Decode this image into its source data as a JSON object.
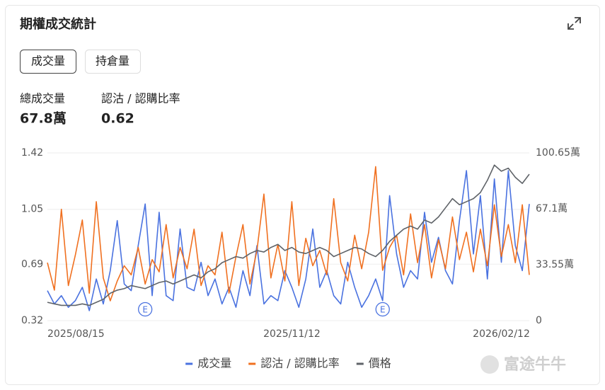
{
  "header": {
    "title": "期權成交統計"
  },
  "tabs": [
    "成交量",
    "持倉量"
  ],
  "summary": [
    {
      "label": "總成交量",
      "value": "67.8萬"
    },
    {
      "label": "認沽 / 認購比率",
      "value": "0.62"
    }
  ],
  "watermark": "富途牛牛",
  "chart_data": {
    "type": "line",
    "categories": [
      "2025/08/15",
      null,
      null,
      null,
      null,
      null,
      null,
      null,
      null,
      null,
      null,
      null,
      null,
      null,
      null,
      null,
      null,
      null,
      null,
      null,
      null,
      null,
      null,
      null,
      null,
      null,
      null,
      null,
      null,
      null,
      null,
      null,
      null,
      null,
      null,
      "2025/11/12",
      null,
      null,
      null,
      null,
      null,
      null,
      null,
      null,
      null,
      null,
      null,
      null,
      null,
      null,
      null,
      null,
      null,
      null,
      null,
      null,
      null,
      null,
      null,
      null,
      null,
      null,
      null,
      null,
      null,
      "2026/02/12",
      null,
      null,
      null,
      null
    ],
    "series": [
      {
        "name": "成交量",
        "color": "#4a72e0",
        "axis": "y2",
        "values": [
          18,
          10,
          15,
          8,
          12,
          20,
          6,
          25,
          10,
          30,
          60,
          22,
          18,
          45,
          70,
          15,
          65,
          15,
          12,
          55,
          20,
          18,
          35,
          15,
          25,
          10,
          20,
          8,
          30,
          15,
          45,
          10,
          15,
          12,
          30,
          20,
          8,
          25,
          55,
          20,
          30,
          15,
          10,
          35,
          20,
          8,
          15,
          25,
          12,
          75,
          40,
          20,
          30,
          25,
          65,
          35,
          50,
          30,
          22,
          60,
          90,
          40,
          75,
          25,
          85,
          35,
          90,
          45,
          30,
          70
        ]
      },
      {
        "name": "認沽 / 認購比率",
        "color": "#f07020",
        "values": [
          0.7,
          0.52,
          1.05,
          0.55,
          0.75,
          0.98,
          0.5,
          1.1,
          0.6,
          0.45,
          0.58,
          0.68,
          0.62,
          0.8,
          0.56,
          0.72,
          0.64,
          0.95,
          0.6,
          0.8,
          0.66,
          0.92,
          0.55,
          0.68,
          0.62,
          0.9,
          0.5,
          0.74,
          0.95,
          0.56,
          0.78,
          1.15,
          0.6,
          0.82,
          0.58,
          1.1,
          0.55,
          0.86,
          0.68,
          0.78,
          0.62,
          1.12,
          0.7,
          0.58,
          0.88,
          0.66,
          0.9,
          1.33,
          0.65,
          0.8,
          0.88,
          0.62,
          1.02,
          0.7,
          0.95,
          0.6,
          0.85,
          0.66,
          1.0,
          0.72,
          0.9,
          0.64,
          0.92,
          0.68,
          1.08,
          0.74,
          0.95,
          0.7,
          1.08,
          0.62
        ]
      },
      {
        "name": "價格",
        "color": "#5f6368",
        "values": [
          0.44,
          0.43,
          0.42,
          0.42,
          0.42,
          0.43,
          0.42,
          0.44,
          0.46,
          0.5,
          0.52,
          0.53,
          0.55,
          0.54,
          0.53,
          0.55,
          0.57,
          0.58,
          0.56,
          0.58,
          0.6,
          0.62,
          0.6,
          0.64,
          0.66,
          0.7,
          0.72,
          0.74,
          0.73,
          0.76,
          0.78,
          0.77,
          0.8,
          0.82,
          0.78,
          0.8,
          0.77,
          0.76,
          0.78,
          0.8,
          0.78,
          0.74,
          0.76,
          0.78,
          0.8,
          0.79,
          0.76,
          0.74,
          0.78,
          0.84,
          0.88,
          0.92,
          0.94,
          0.92,
          0.98,
          0.96,
          1.0,
          1.06,
          1.12,
          1.08,
          1.1,
          1.12,
          1.16,
          1.24,
          1.34,
          1.3,
          1.32,
          1.26,
          1.22,
          1.28
        ]
      }
    ],
    "ylim": [
      0.32,
      1.42
    ],
    "yticks": [
      0.32,
      0.69,
      1.05,
      1.42
    ],
    "y2lim": [
      0,
      100.65
    ],
    "y2ticks": [
      0,
      {
        "value": 33.55,
        "label": "33.55萬"
      },
      {
        "value": 67.1,
        "label": "67.1萬"
      },
      {
        "value": 100.65,
        "label": "100.65萬"
      }
    ],
    "grid": true,
    "legend": "bottom",
    "annotations": [
      {
        "text": "E",
        "at": 14
      },
      {
        "text": "E",
        "at": 48
      }
    ]
  }
}
